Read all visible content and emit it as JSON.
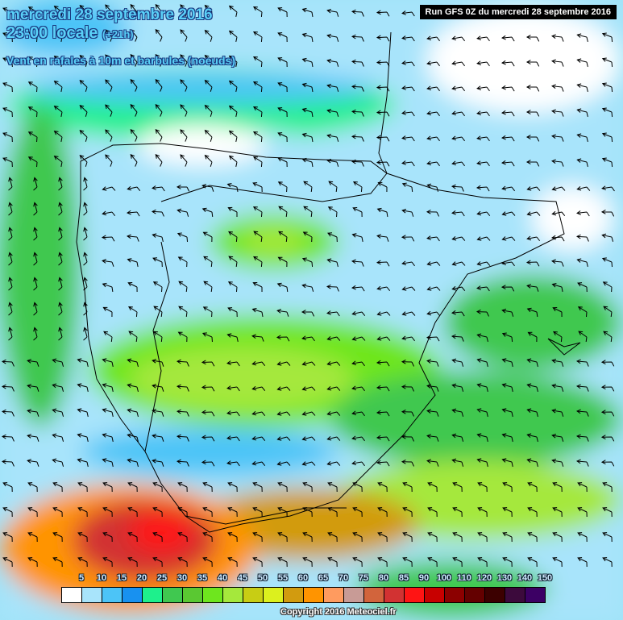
{
  "header": {
    "date": "mercredi 28 septembre 2016",
    "time": "23:00 locale",
    "offset": "(+21h)",
    "parameter": "Vent en rafales à 10m et barbules (noeuds)",
    "run": "Run GFS 0Z du mercredi 28 septembre 2016"
  },
  "legend": {
    "labels": [
      "5",
      "10",
      "15",
      "20",
      "25",
      "30",
      "35",
      "40",
      "45",
      "50",
      "55",
      "60",
      "65",
      "70",
      "75",
      "80",
      "85",
      "90",
      "100",
      "110",
      "120",
      "130",
      "140",
      "150"
    ],
    "colors": [
      "#ffffff",
      "#a8e4fb",
      "#4cc4f7",
      "#1891f0",
      "#1ef08c",
      "#40c850",
      "#5ac832",
      "#6ee61e",
      "#a5e83c",
      "#c8cd14",
      "#dcf01e",
      "#d29b0f",
      "#ff9400",
      "#ff9b5f",
      "#c89b96",
      "#d2643c",
      "#d23232",
      "#ff1414",
      "#c80000",
      "#8c0000",
      "#640000",
      "#3c0000",
      "#3c0a3c",
      "#3c0064"
    ]
  },
  "copyright": "Copyright 2016 Meteociel.fr"
}
